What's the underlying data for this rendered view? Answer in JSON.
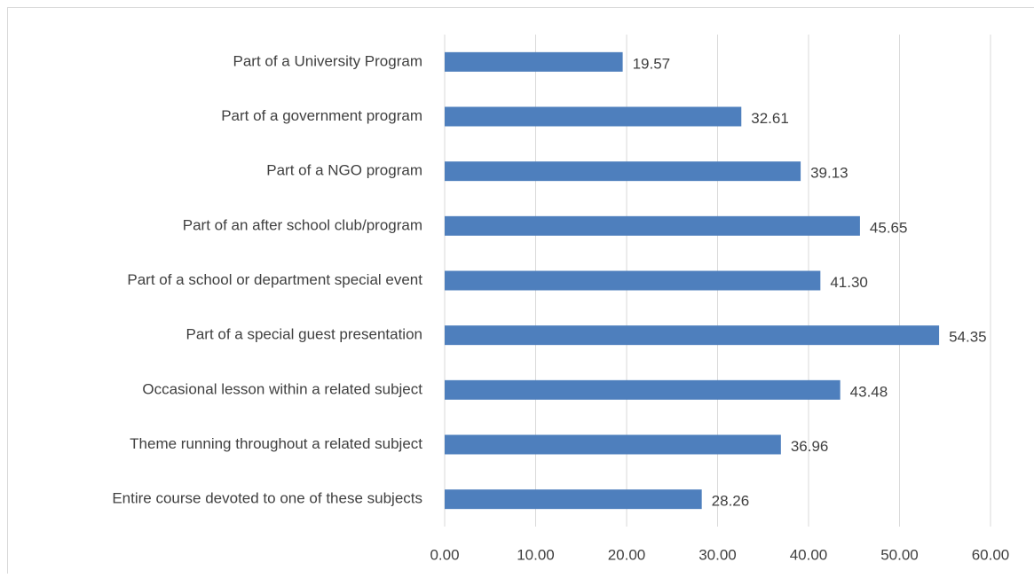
{
  "chart_data": {
    "type": "bar",
    "orientation": "horizontal",
    "categories": [
      "Part of a University Program",
      "Part of a government program",
      "Part of a NGO program",
      "Part of an after school club/program",
      "Part of a school or department special event",
      "Part of a special guest presentation",
      "Occasional lesson within a related subject",
      "Theme running throughout a related subject",
      "Entire course devoted to one of these subjects"
    ],
    "values": [
      19.57,
      32.61,
      39.13,
      45.65,
      41.3,
      54.35,
      43.48,
      36.96,
      28.26
    ],
    "value_labels": [
      "19.57",
      "32.61",
      "39.13",
      "45.65",
      "41.30",
      "54.35",
      "43.48",
      "36.96",
      "28.26"
    ],
    "color": "#4e7fbd",
    "xlim": [
      0,
      60
    ],
    "xticks": [
      {
        "value": 0,
        "label": "0.00"
      },
      {
        "value": 10,
        "label": "10.00"
      },
      {
        "value": 20,
        "label": "20.00"
      },
      {
        "value": 30,
        "label": "30.00"
      },
      {
        "value": 40,
        "label": "40.00"
      },
      {
        "value": 50,
        "label": "50.00"
      },
      {
        "value": 60,
        "label": "60.00"
      }
    ],
    "grid": true
  }
}
